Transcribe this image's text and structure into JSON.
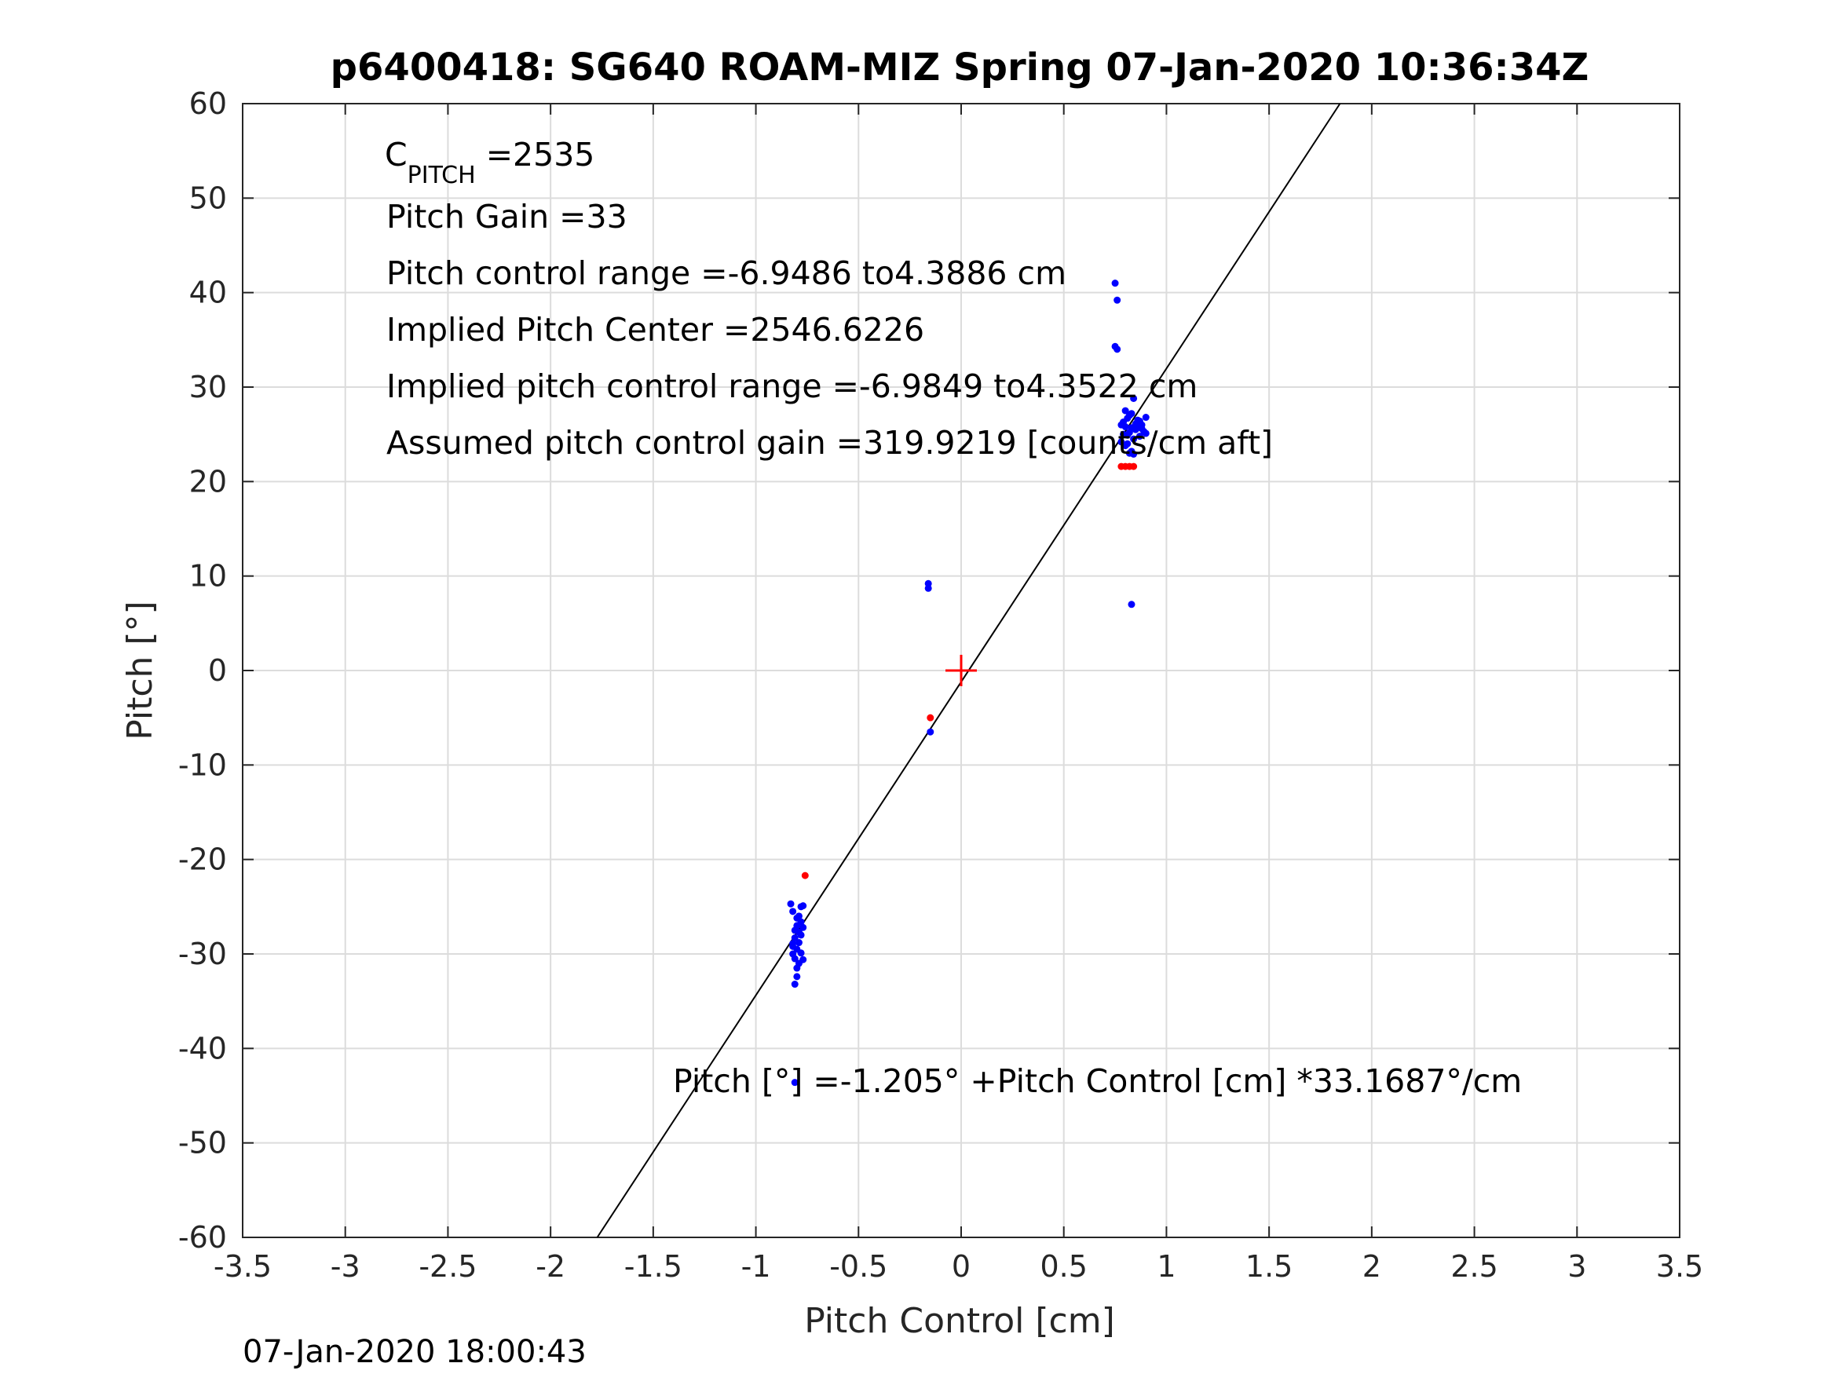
{
  "chart_data": {
    "type": "scatter",
    "title": "p6400418: SG640 ROAM-MIZ Spring 07-Jan-2020 10:36:34Z",
    "xlabel": "Pitch Control [cm]",
    "ylabel": "Pitch [°]",
    "xlim": [
      -3.5,
      3.5
    ],
    "ylim": [
      -60,
      60
    ],
    "x_ticks": [
      -3.5,
      -3,
      -2.5,
      -2,
      -1.5,
      -1,
      -0.5,
      0,
      0.5,
      1,
      1.5,
      2,
      2.5,
      3,
      3.5
    ],
    "y_ticks": [
      -60,
      -50,
      -40,
      -30,
      -20,
      -10,
      0,
      10,
      20,
      30,
      40,
      50,
      60
    ],
    "x_tick_labels": [
      "-3.5",
      "-3",
      "-2.5",
      "-2",
      "-1.5",
      "-1",
      "-0.5",
      "0",
      "0.5",
      "1",
      "1.5",
      "2",
      "2.5",
      "3",
      "3.5"
    ],
    "y_tick_labels": [
      "-60",
      "-50",
      "-40",
      "-30",
      "-20",
      "-10",
      "0",
      "10",
      "20",
      "30",
      "40",
      "50",
      "60"
    ],
    "grid": true,
    "series": [
      {
        "color": "#0000ff",
        "marker": "dot",
        "points": [
          [
            0.75,
            41.0
          ],
          [
            0.76,
            39.2
          ],
          [
            0.75,
            34.3
          ],
          [
            0.76,
            34.0
          ],
          [
            0.8,
            27.5
          ],
          [
            0.82,
            27.0
          ],
          [
            0.84,
            28.8
          ],
          [
            0.86,
            26.5
          ],
          [
            0.88,
            26.0
          ],
          [
            0.9,
            26.8
          ],
          [
            0.78,
            26.0
          ],
          [
            0.79,
            25.0
          ],
          [
            0.81,
            24.0
          ],
          [
            0.83,
            23.2
          ],
          [
            0.85,
            25.5
          ],
          [
            0.87,
            24.8
          ],
          [
            0.8,
            25.8
          ],
          [
            0.82,
            25.2
          ],
          [
            0.84,
            24.5
          ],
          [
            0.86,
            25.9
          ],
          [
            0.89,
            25.3
          ],
          [
            0.78,
            24.2
          ],
          [
            0.81,
            26.7
          ],
          [
            0.83,
            27.2
          ],
          [
            0.85,
            26.1
          ],
          [
            0.88,
            25.6
          ],
          [
            0.8,
            23.8
          ],
          [
            0.82,
            23.0
          ],
          [
            0.84,
            22.9
          ],
          [
            0.79,
            26.3
          ],
          [
            0.87,
            26.4
          ],
          [
            0.9,
            25.1
          ],
          [
            0.83,
            25.7
          ],
          [
            0.81,
            24.9
          ],
          [
            0.83,
            7.0
          ],
          [
            -0.16,
            9.2
          ],
          [
            -0.16,
            8.7
          ],
          [
            -0.15,
            -6.5
          ],
          [
            -0.83,
            -24.7
          ],
          [
            -0.82,
            -25.5
          ],
          [
            -0.78,
            -25.0
          ],
          [
            -0.77,
            -24.9
          ],
          [
            -0.79,
            -26.0
          ],
          [
            -0.8,
            -27.0
          ],
          [
            -0.81,
            -27.5
          ],
          [
            -0.78,
            -28.0
          ],
          [
            -0.79,
            -28.8
          ],
          [
            -0.8,
            -29.5
          ],
          [
            -0.82,
            -30.0
          ],
          [
            -0.81,
            -30.5
          ],
          [
            -0.79,
            -31.0
          ],
          [
            -0.8,
            -31.5
          ],
          [
            -0.82,
            -29.2
          ],
          [
            -0.77,
            -27.2
          ],
          [
            -0.78,
            -29.9
          ],
          [
            -0.8,
            -26.2
          ],
          [
            -0.81,
            -28.3
          ],
          [
            -0.79,
            -27.7
          ],
          [
            -0.8,
            -32.4
          ],
          [
            -0.81,
            -33.2
          ],
          [
            -0.77,
            -30.6
          ],
          [
            -0.78,
            -26.6
          ],
          [
            -0.82,
            -28.9
          ],
          [
            -0.81,
            -43.6
          ]
        ]
      },
      {
        "color": "#ff0000",
        "marker": "dot",
        "points": [
          [
            -0.76,
            -21.7
          ],
          [
            -0.15,
            -5.0
          ],
          [
            0.78,
            21.6
          ],
          [
            0.8,
            21.6
          ],
          [
            0.82,
            21.6
          ],
          [
            0.84,
            21.6
          ]
        ]
      }
    ],
    "fit_line": {
      "intercept": -1.205,
      "slope": 33.1687,
      "color": "#000000"
    },
    "center_marker": {
      "x": 0,
      "y": 0,
      "color": "#ff0000"
    },
    "annotations": {
      "c_pitch_main": "C",
      "c_pitch_sub": "PITCH",
      "c_pitch_value": " =2535",
      "line2": "Pitch Gain =33",
      "line3": "Pitch control range =-6.9486 to4.3886 cm",
      "line4": "Implied Pitch Center =2546.6226",
      "line5": "Implied pitch control range =-6.9849 to4.3522 cm",
      "line6": "Assumed pitch control gain =319.9219 [counts/cm aft]",
      "fit_equation": "Pitch [°] =-1.205° +Pitch Control [cm] *33.1687°/cm"
    }
  },
  "footer": {
    "timestamp": "07-Jan-2020 18:00:43"
  }
}
